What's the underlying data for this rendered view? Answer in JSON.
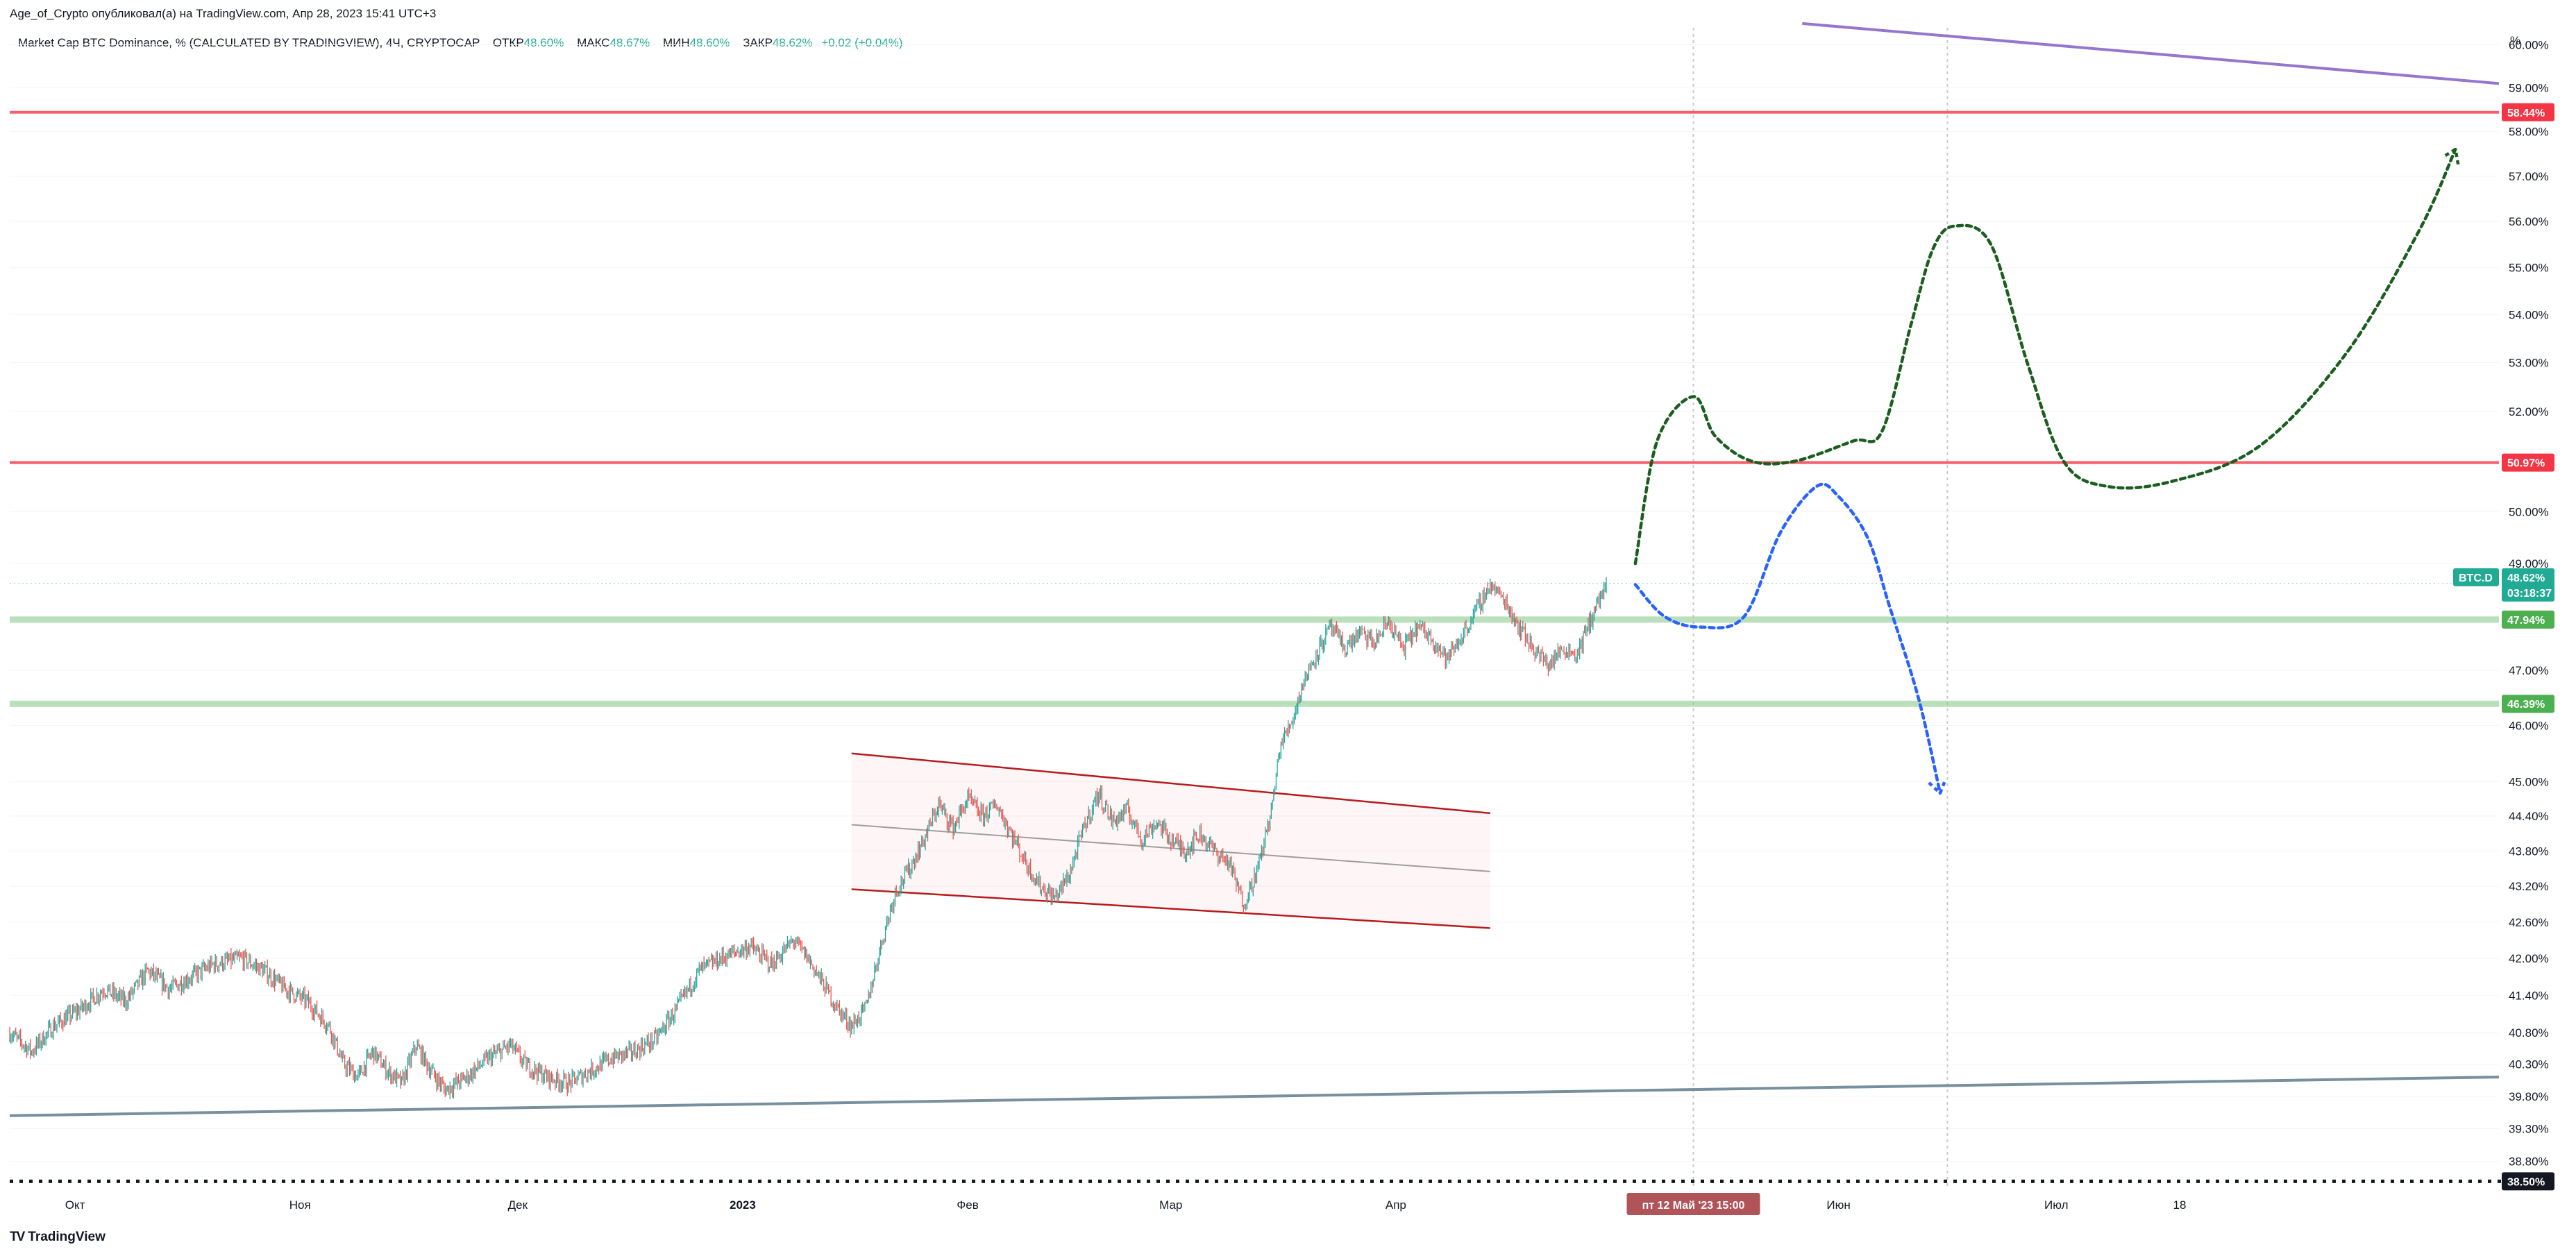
{
  "header": {
    "publisher": "Age_of_Crypto опубликовал(а) на TradingView.com, Апр 28, 2023 15:41 UTC+3",
    "symbol_title": "Market Cap BTC Dominance, % (CALCULATED BY TRADINGVIEW), 4Ч, CRYPTOCAP",
    "ohlc": {
      "open_label": "ОТКР",
      "open": "48.60%",
      "high_label": "МАКС",
      "high": "48.67%",
      "low_label": "МИН",
      "low": "48.60%",
      "close_label": "ЗАКР",
      "close": "48.62%",
      "change": "+0.02 (+0.04%)"
    }
  },
  "footer": {
    "logo_glyph": "TV",
    "logo_text": "TradingView"
  },
  "colors": {
    "resistance": "#f23645",
    "support": "#81c784",
    "support_badge": "#4caf50",
    "green_path": "#1b5e20",
    "blue_path": "#2962ff",
    "purple_line": "#9575cd",
    "gray_line": "#78909c",
    "price_badge": "#22ab94",
    "channel_line": "#b71c1c",
    "date_badge": "#b1545a",
    "up_candle": "#26a69a",
    "down_candle": "#ef5350"
  },
  "chart_data": {
    "type": "candlestick",
    "symbol": "BTC.D",
    "interval": "4Ч",
    "y_axis": {
      "unit_label": "%",
      "scale": "log",
      "range": [
        38.4,
        60.4
      ],
      "ticks": [
        "60.00%",
        "59.00%",
        "58.00%",
        "57.00%",
        "56.00%",
        "55.00%",
        "54.00%",
        "53.00%",
        "52.00%",
        "51.00%",
        "50.00%",
        "49.00%",
        "47.00%",
        "46.00%",
        "45.00%",
        "44.40%",
        "43.80%",
        "43.20%",
        "42.60%",
        "42.00%",
        "41.40%",
        "40.80%",
        "40.30%",
        "39.80%",
        "39.30%",
        "38.80%"
      ]
    },
    "x_axis": {
      "range": [
        "2022-09-22",
        "2023-08-31"
      ],
      "ticks": [
        {
          "date": "2022-10-01",
          "label": "Окт"
        },
        {
          "date": "2022-11-01",
          "label": "Ноя"
        },
        {
          "date": "2022-12-01",
          "label": "Дек"
        },
        {
          "date": "2023-01-01",
          "label": "2023"
        },
        {
          "date": "2023-02-01",
          "label": "Фев"
        },
        {
          "date": "2023-03-01",
          "label": "Мар"
        },
        {
          "date": "2023-04-01",
          "label": "Апр"
        },
        {
          "date": "2023-06-01",
          "label": "Июн"
        },
        {
          "date": "2023-07-01",
          "label": "Июл"
        },
        {
          "date": "2023-07-18",
          "label": "18"
        }
      ],
      "cursor_label": "пт 12 Май '23  15:00",
      "cursor_date": "2023-05-12"
    },
    "price_path": [
      [
        "2022-09-22",
        40.8
      ],
      [
        "2022-09-25",
        40.5
      ],
      [
        "2022-09-28",
        40.9
      ],
      [
        "2022-10-02",
        41.2
      ],
      [
        "2022-10-05",
        41.5
      ],
      [
        "2022-10-08",
        41.3
      ],
      [
        "2022-10-11",
        41.8
      ],
      [
        "2022-10-14",
        41.5
      ],
      [
        "2022-10-17",
        41.7
      ],
      [
        "2022-10-20",
        41.9
      ],
      [
        "2022-10-24",
        42.0
      ],
      [
        "2022-10-27",
        41.8
      ],
      [
        "2022-10-30",
        41.5
      ],
      [
        "2022-11-02",
        41.3
      ],
      [
        "2022-11-05",
        40.9
      ],
      [
        "2022-11-07",
        40.3
      ],
      [
        "2022-11-09",
        40.1
      ],
      [
        "2022-11-11",
        40.5
      ],
      [
        "2022-11-13",
        40.2
      ],
      [
        "2022-11-15",
        40.0
      ],
      [
        "2022-11-17",
        40.6
      ],
      [
        "2022-11-19",
        40.2
      ],
      [
        "2022-11-21",
        39.9
      ],
      [
        "2022-11-24",
        40.1
      ],
      [
        "2022-11-27",
        40.4
      ],
      [
        "2022-11-30",
        40.6
      ],
      [
        "2022-12-02",
        40.3
      ],
      [
        "2022-12-05",
        40.1
      ],
      [
        "2022-12-08",
        40.0
      ],
      [
        "2022-12-11",
        40.2
      ],
      [
        "2022-12-14",
        40.4
      ],
      [
        "2022-12-17",
        40.5
      ],
      [
        "2022-12-20",
        40.7
      ],
      [
        "2022-12-23",
        41.2
      ],
      [
        "2022-12-26",
        41.8
      ],
      [
        "2022-12-29",
        42.0
      ],
      [
        "2023-01-02",
        42.2
      ],
      [
        "2023-01-05",
        41.9
      ],
      [
        "2023-01-08",
        42.3
      ],
      [
        "2023-01-10",
        42.0
      ],
      [
        "2023-01-12",
        41.6
      ],
      [
        "2023-01-14",
        41.2
      ],
      [
        "2023-01-16",
        40.9
      ],
      [
        "2023-01-18",
        41.2
      ],
      [
        "2023-01-20",
        42.2
      ],
      [
        "2023-01-22",
        43.1
      ],
      [
        "2023-01-24",
        43.5
      ],
      [
        "2023-01-26",
        44.0
      ],
      [
        "2023-01-28",
        44.6
      ],
      [
        "2023-01-30",
        44.2
      ],
      [
        "2023-02-01",
        44.7
      ],
      [
        "2023-02-03",
        44.4
      ],
      [
        "2023-02-05",
        44.6
      ],
      [
        "2023-02-07",
        44.1
      ],
      [
        "2023-02-09",
        43.6
      ],
      [
        "2023-02-11",
        43.2
      ],
      [
        "2023-02-13",
        43.0
      ],
      [
        "2023-02-15",
        43.4
      ],
      [
        "2023-02-17",
        44.2
      ],
      [
        "2023-02-19",
        44.8
      ],
      [
        "2023-02-21",
        44.3
      ],
      [
        "2023-02-23",
        44.5
      ],
      [
        "2023-02-25",
        44.0
      ],
      [
        "2023-02-27",
        44.3
      ],
      [
        "2023-03-01",
        44.0
      ],
      [
        "2023-03-03",
        43.8
      ],
      [
        "2023-03-05",
        44.1
      ],
      [
        "2023-03-07",
        43.8
      ],
      [
        "2023-03-09",
        43.6
      ],
      [
        "2023-03-11",
        42.9
      ],
      [
        "2023-03-13",
        43.5
      ],
      [
        "2023-03-15",
        44.6
      ],
      [
        "2023-03-16",
        45.6
      ],
      [
        "2023-03-18",
        46.2
      ],
      [
        "2023-03-19",
        46.7
      ],
      [
        "2023-03-21",
        47.3
      ],
      [
        "2023-03-23",
        47.8
      ],
      [
        "2023-03-25",
        47.4
      ],
      [
        "2023-03-27",
        47.7
      ],
      [
        "2023-03-29",
        47.5
      ],
      [
        "2023-03-31",
        47.9
      ],
      [
        "2023-04-02",
        47.4
      ],
      [
        "2023-04-04",
        47.8
      ],
      [
        "2023-04-06",
        47.6
      ],
      [
        "2023-04-08",
        47.2
      ],
      [
        "2023-04-10",
        47.6
      ],
      [
        "2023-04-12",
        48.1
      ],
      [
        "2023-04-14",
        48.6
      ],
      [
        "2023-04-16",
        48.3
      ],
      [
        "2023-04-18",
        47.8
      ],
      [
        "2023-04-20",
        47.4
      ],
      [
        "2023-04-22",
        47.1
      ],
      [
        "2023-04-24",
        47.4
      ],
      [
        "2023-04-26",
        47.3
      ],
      [
        "2023-04-28",
        48.0
      ],
      [
        "2023-04-30",
        48.62
      ]
    ],
    "last_price": {
      "label": "BTC.D",
      "value": "48.62%",
      "countdown": "03:18:37",
      "y": 48.62
    },
    "horizontal_levels": [
      {
        "name": "resistance-upper",
        "y": 58.44,
        "label": "58.44%",
        "kind": "resistance"
      },
      {
        "name": "resistance-lower",
        "y": 50.97,
        "label": "50.97%",
        "kind": "resistance"
      },
      {
        "name": "support-upper",
        "y": 47.94,
        "label": "47.94%",
        "kind": "support"
      },
      {
        "name": "support-lower",
        "y": 46.39,
        "label": "46.39%",
        "kind": "support"
      },
      {
        "name": "bottom-level",
        "y": 38.5,
        "label": "38.50%",
        "kind": "dotted"
      }
    ],
    "trend_lines": [
      {
        "name": "purple-trendline",
        "from": [
          "2023-05-27",
          60.5
        ],
        "to": [
          "2023-08-31",
          59.1
        ]
      },
      {
        "name": "gray-trendline",
        "from": [
          "2022-09-22",
          39.5
        ],
        "to": [
          "2023-08-31",
          40.1
        ]
      }
    ],
    "vertical_lines": [
      {
        "name": "cursor-vline",
        "date": "2023-05-12"
      },
      {
        "name": "dashed-vline",
        "date": "2023-06-16"
      }
    ],
    "channel": {
      "start": "2023-01-16",
      "end": "2023-04-14",
      "upper": [
        45.5,
        44.45
      ],
      "middle": [
        44.25,
        43.45
      ],
      "lower": [
        43.15,
        42.5
      ]
    },
    "projections": [
      {
        "name": "green-bullish-path",
        "points": [
          [
            "2023-05-04",
            49.0
          ],
          [
            "2023-05-07",
            51.4
          ],
          [
            "2023-05-12",
            52.3
          ],
          [
            "2023-05-15",
            51.5
          ],
          [
            "2023-05-20",
            51.0
          ],
          [
            "2023-05-26",
            51.0
          ],
          [
            "2023-06-03",
            51.4
          ],
          [
            "2023-06-07",
            51.6
          ],
          [
            "2023-06-11",
            53.8
          ],
          [
            "2023-06-14",
            55.4
          ],
          [
            "2023-06-17",
            55.9
          ],
          [
            "2023-06-22",
            55.5
          ],
          [
            "2023-06-27",
            53.0
          ],
          [
            "2023-07-02",
            51.0
          ],
          [
            "2023-07-08",
            50.5
          ],
          [
            "2023-07-17",
            50.6
          ],
          [
            "2023-07-29",
            51.3
          ],
          [
            "2023-08-10",
            53.2
          ],
          [
            "2023-08-20",
            55.8
          ],
          [
            "2023-08-25",
            57.6
          ]
        ]
      },
      {
        "name": "blue-bearish-path",
        "points": [
          [
            "2023-05-04",
            48.6
          ],
          [
            "2023-05-08",
            48.0
          ],
          [
            "2023-05-13",
            47.8
          ],
          [
            "2023-05-19",
            48.0
          ],
          [
            "2023-05-24",
            49.6
          ],
          [
            "2023-05-29",
            50.5
          ],
          [
            "2023-06-01",
            50.3
          ],
          [
            "2023-06-05",
            49.5
          ],
          [
            "2023-06-08",
            48.2
          ],
          [
            "2023-06-12",
            46.5
          ],
          [
            "2023-06-15",
            44.8
          ]
        ]
      }
    ]
  }
}
